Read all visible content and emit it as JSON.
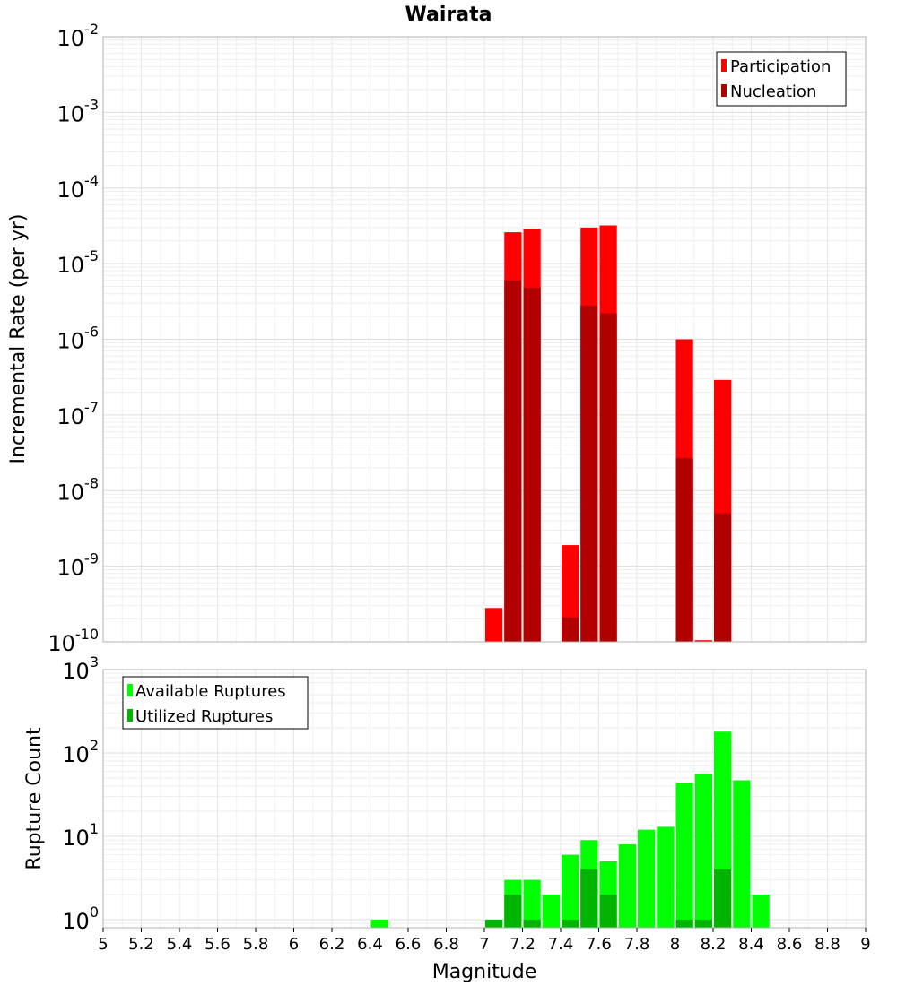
{
  "chart_data": [
    {
      "type": "bar",
      "title": "Wairata",
      "ylabel": "Incremental Rate (per yr)",
      "xlim": [
        5,
        9
      ],
      "ylim": [
        1e-10,
        0.01
      ],
      "yscale": "log",
      "grid": true,
      "legend_position": "top-right",
      "x": [
        7.05,
        7.15,
        7.25,
        7.45,
        7.55,
        7.65,
        8.05,
        8.15,
        8.25
      ],
      "series": [
        {
          "name": "Participation",
          "color": "#ff0000",
          "values": [
            2.8e-10,
            2.6e-05,
            2.9e-05,
            1.9e-09,
            3e-05,
            3.2e-05,
            1e-06,
            1.05e-10,
            2.9e-07
          ]
        },
        {
          "name": "Nucleation",
          "color": "#b20000",
          "values": [
            null,
            6e-06,
            4.8e-06,
            2.1e-10,
            2.8e-06,
            2.2e-06,
            2.7e-08,
            null,
            5e-09
          ]
        }
      ],
      "yticks": [
        {
          "base": "10",
          "exp": "-2",
          "v": 0.01
        },
        {
          "base": "10",
          "exp": "-3",
          "v": 0.001
        },
        {
          "base": "10",
          "exp": "-4",
          "v": 0.0001
        },
        {
          "base": "10",
          "exp": "-5",
          "v": 1e-05
        },
        {
          "base": "10",
          "exp": "-6",
          "v": 1e-06
        },
        {
          "base": "10",
          "exp": "-7",
          "v": 1e-07
        },
        {
          "base": "10",
          "exp": "-8",
          "v": 1e-08
        },
        {
          "base": "10",
          "exp": "-9",
          "v": 1e-09
        },
        {
          "base": "10",
          "exp": "-10",
          "v": 1e-10
        }
      ]
    },
    {
      "type": "bar",
      "ylabel": "Rupture Count",
      "xlabel": "Magnitude",
      "xlim": [
        5,
        9
      ],
      "ylim": [
        0.8,
        1000
      ],
      "yscale": "log",
      "grid": true,
      "legend_position": "top-left",
      "x": [
        6.45,
        7.05,
        7.15,
        7.25,
        7.35,
        7.45,
        7.55,
        7.65,
        7.75,
        7.85,
        7.95,
        8.05,
        8.15,
        8.25,
        8.35,
        8.45
      ],
      "series": [
        {
          "name": "Available Ruptures",
          "color": "#00ff00",
          "values": [
            1,
            1,
            3,
            3,
            2,
            6,
            9,
            5,
            8,
            12,
            13,
            44,
            56,
            180,
            47,
            2
          ]
        },
        {
          "name": "Utilized Ruptures",
          "color": "#00b400",
          "values": [
            null,
            1,
            2,
            1,
            null,
            1,
            4,
            2,
            null,
            null,
            null,
            1,
            1,
            4,
            null,
            null
          ]
        }
      ],
      "yticks": [
        {
          "base": "10",
          "exp": "3",
          "v": 1000
        },
        {
          "base": "10",
          "exp": "2",
          "v": 100
        },
        {
          "base": "10",
          "exp": "1",
          "v": 10
        },
        {
          "base": "10",
          "exp": "0",
          "v": 1
        }
      ],
      "xticks": [
        "5",
        "5.2",
        "5.4",
        "5.6",
        "5.8",
        "6",
        "6.2",
        "6.4",
        "6.6",
        "6.8",
        "7",
        "7.2",
        "7.4",
        "7.6",
        "7.8",
        "8",
        "8.2",
        "8.4",
        "8.6",
        "8.8",
        "9"
      ]
    }
  ]
}
